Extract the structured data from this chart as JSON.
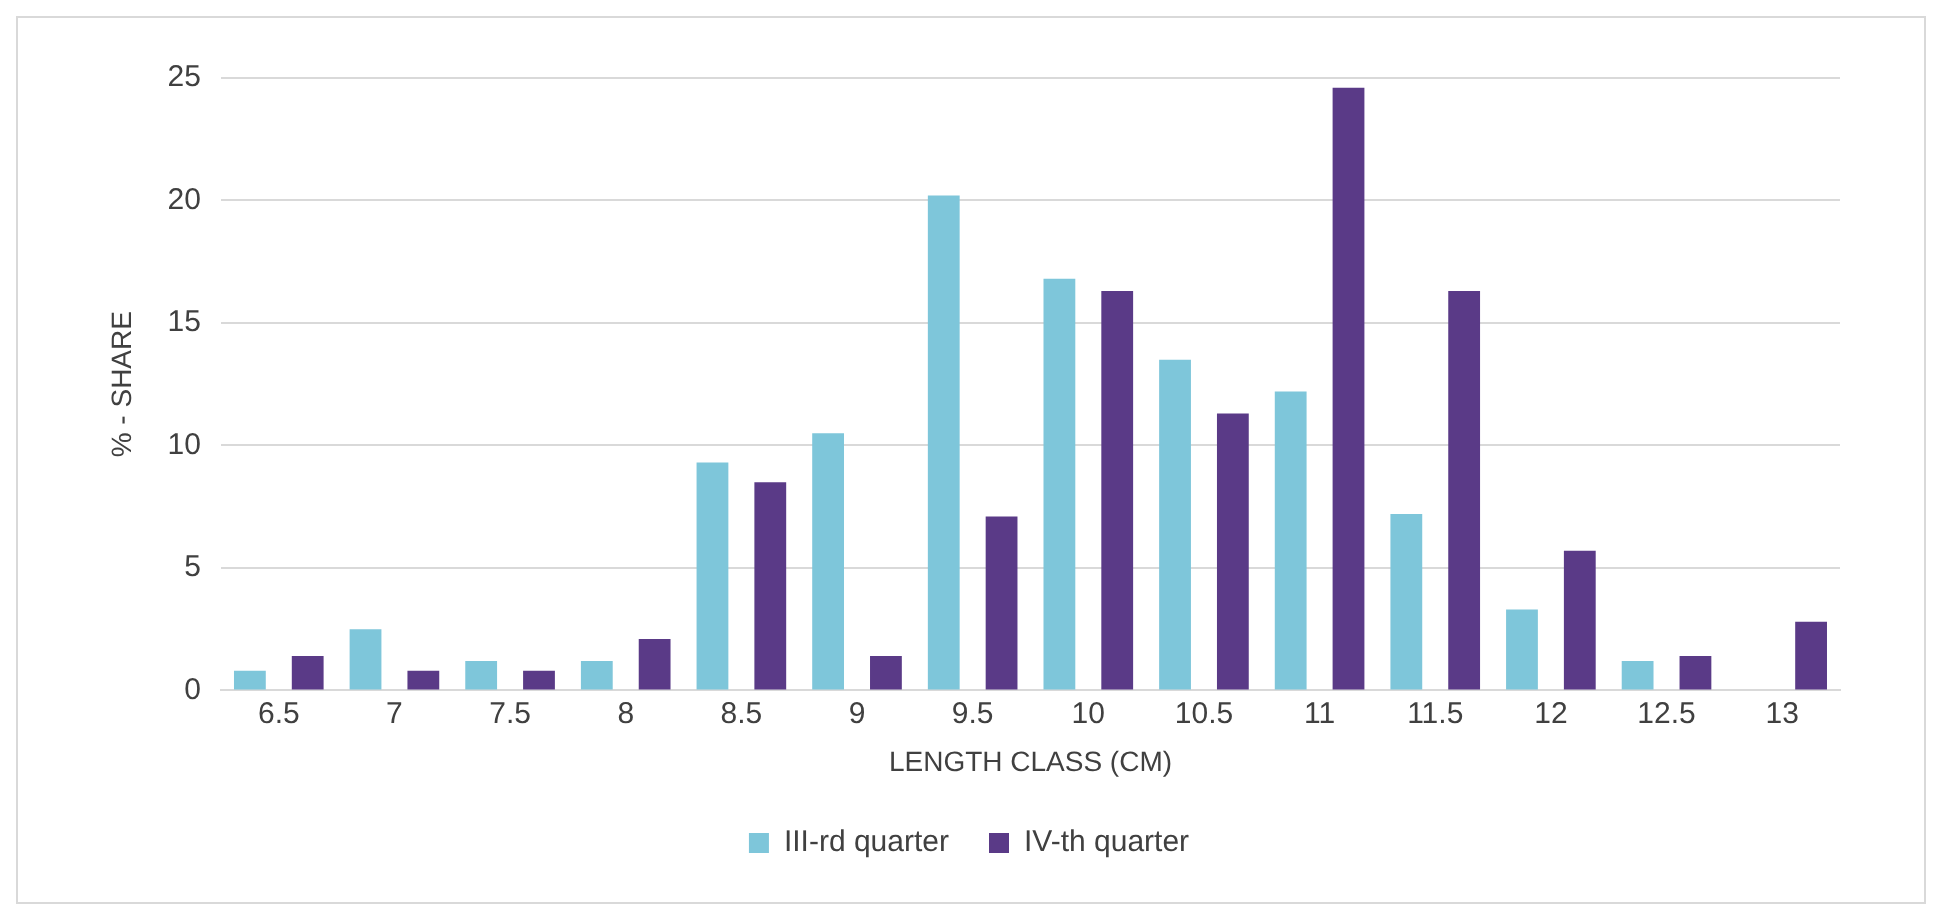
{
  "chart_data": {
    "type": "bar",
    "xlabel": "LENGTH CLASS (CM)",
    "ylabel": "% - SHARE",
    "categories": [
      "6.5",
      "7",
      "7.5",
      "8",
      "8.5",
      "9",
      "9.5",
      "10",
      "10.5",
      "11",
      "11.5",
      "12",
      "12.5",
      "13"
    ],
    "series": [
      {
        "name": "III-rd quarter",
        "color": "#7ec6da",
        "values": [
          0.8,
          2.5,
          1.2,
          1.2,
          9.3,
          10.5,
          20.2,
          16.8,
          13.5,
          12.2,
          7.2,
          3.3,
          1.2,
          0
        ]
      },
      {
        "name": "IV-th quarter",
        "color": "#5a3a87",
        "values": [
          1.4,
          0.8,
          0.8,
          2.1,
          8.5,
          1.4,
          7.1,
          16.3,
          11.3,
          24.6,
          16.3,
          5.7,
          1.4,
          2.8
        ]
      }
    ],
    "ylim": [
      0,
      25
    ],
    "yticks": [
      0,
      5,
      10,
      15,
      20,
      25
    ],
    "grid": "y",
    "legend": "bottom"
  }
}
